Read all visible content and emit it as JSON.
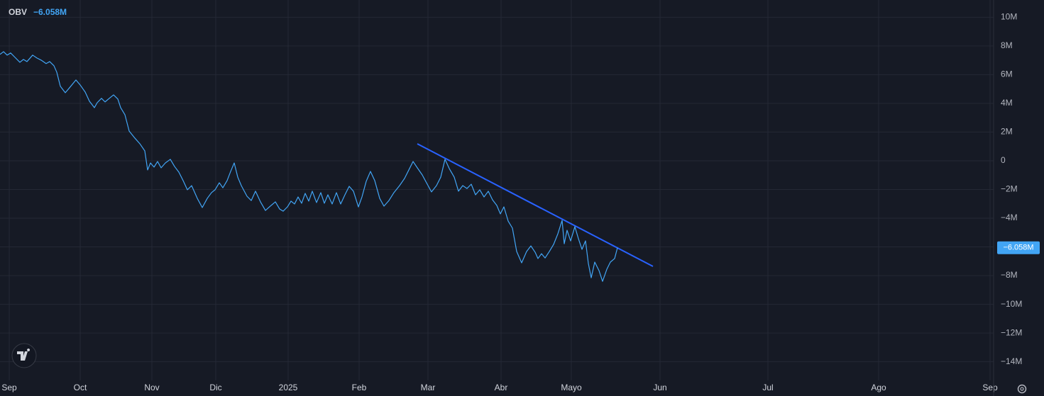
{
  "chart_data": {
    "type": "line",
    "series": [
      {
        "name": "OBV",
        "color": "#42a5f5",
        "x": [
          0,
          1,
          2,
          3,
          4.4,
          5.6,
          6.6,
          7.6,
          9.2,
          10.4,
          11.6,
          13,
          14,
          15.2,
          16,
          17,
          18.4,
          19.6,
          21.4,
          22.6,
          24,
          25.2,
          26.6,
          27.4,
          28.6,
          29.6,
          30.8,
          32,
          33.2,
          34,
          35.2,
          36.4,
          38,
          39.4,
          40.8,
          41.6,
          42.4,
          43.4,
          44.4,
          45.4,
          46.6,
          48,
          49.2,
          50.4,
          51.6,
          52.8,
          54,
          55.6,
          57,
          58.4,
          59.6,
          60.6,
          61.8,
          62.8,
          64,
          65,
          66,
          67,
          68,
          69.6,
          70.8,
          72,
          73.4,
          74.8,
          76.4,
          77.6,
          78.8,
          79.8,
          81,
          82,
          83,
          84,
          85,
          86,
          87,
          88,
          89.2,
          90.4,
          91.4,
          92.4,
          93.6,
          94.8,
          96,
          97.2,
          98.4,
          99.6,
          101,
          102,
          103.2,
          104.4,
          105.6,
          107,
          108.2,
          109.6,
          111,
          112.6,
          114,
          115.2,
          116.4,
          117.6,
          119,
          120.4,
          121.6,
          123,
          124.2,
          125.4,
          126.6,
          128,
          129.2,
          130.4,
          131.6,
          132.8,
          134,
          135.2,
          136.4,
          137.6,
          138.8,
          140,
          141,
          142,
          143.2,
          144.4,
          145.6,
          147,
          148.4,
          149.6,
          150.8,
          151.6,
          152.6,
          153.6,
          154.8,
          156,
          157.2,
          158.4,
          159,
          159.8,
          160.8,
          162,
          163,
          164,
          165,
          165.8,
          166.6,
          167.6,
          168.8,
          169.8,
          171,
          172,
          173.2,
          174
        ],
        "values": [
          7.41,
          7.6,
          7.36,
          7.51,
          7.16,
          6.86,
          7.06,
          6.91,
          7.36,
          7.16,
          7.01,
          6.77,
          6.91,
          6.62,
          6.17,
          5.19,
          4.74,
          5.09,
          5.63,
          5.28,
          4.79,
          4.15,
          3.7,
          4.05,
          4.35,
          4.1,
          4.35,
          4.59,
          4.3,
          3.7,
          3.21,
          2.07,
          1.58,
          1.19,
          0.69,
          -0.64,
          -0.15,
          -0.44,
          -0.05,
          -0.49,
          -0.15,
          0.1,
          -0.4,
          -0.79,
          -1.38,
          -2.02,
          -1.73,
          -2.62,
          -3.26,
          -2.62,
          -2.22,
          -2.02,
          -1.53,
          -1.88,
          -1.38,
          -0.74,
          -0.15,
          -1.14,
          -1.73,
          -2.47,
          -2.77,
          -2.12,
          -2.86,
          -3.46,
          -3.11,
          -2.86,
          -3.36,
          -3.51,
          -3.21,
          -2.81,
          -3.01,
          -2.52,
          -2.96,
          -2.27,
          -2.81,
          -2.12,
          -2.91,
          -2.22,
          -2.96,
          -2.37,
          -3.01,
          -2.22,
          -3.01,
          -2.37,
          -1.78,
          -2.12,
          -3.21,
          -2.52,
          -1.43,
          -0.74,
          -1.38,
          -2.62,
          -3.16,
          -2.77,
          -2.22,
          -1.73,
          -1.23,
          -0.64,
          -0.05,
          -0.49,
          -0.99,
          -1.63,
          -2.17,
          -1.73,
          -1.14,
          0.1,
          -0.54,
          -1.14,
          -2.12,
          -1.73,
          -1.93,
          -1.63,
          -2.37,
          -2.02,
          -2.52,
          -2.12,
          -2.72,
          -3.11,
          -3.7,
          -3.21,
          -4.2,
          -4.69,
          -6.32,
          -7.11,
          -6.32,
          -5.93,
          -6.37,
          -6.81,
          -6.47,
          -6.77,
          -6.32,
          -5.83,
          -5.09,
          -4.15,
          -5.78,
          -4.84,
          -5.58,
          -4.59,
          -5.43,
          -6.17,
          -5.58,
          -7.16,
          -8.15,
          -7.06,
          -7.65,
          -8.4,
          -7.56,
          -7.06,
          -6.81,
          -6.058
        ]
      }
    ],
    "last_value_label": "−6.058M",
    "xlim": [
      0,
      280
    ],
    "ylim": [
      -15.3,
      11.2
    ],
    "xticks": [
      {
        "value": 2.6,
        "label": "Sep"
      },
      {
        "value": 22.6,
        "label": "Oct"
      },
      {
        "value": 42.8,
        "label": "Nov"
      },
      {
        "value": 60.8,
        "label": "Dic"
      },
      {
        "value": 81.2,
        "label": "2025"
      },
      {
        "value": 101.2,
        "label": "Feb"
      },
      {
        "value": 120.6,
        "label": "Mar"
      },
      {
        "value": 141.2,
        "label": "Abr"
      },
      {
        "value": 161,
        "label": "Mayo"
      },
      {
        "value": 186,
        "label": "Jun"
      },
      {
        "value": 216.4,
        "label": "Jul"
      },
      {
        "value": 247.6,
        "label": "Ago"
      },
      {
        "value": 279,
        "label": "Sep"
      }
    ],
    "yticks": [
      {
        "value": 10,
        "label": "10M"
      },
      {
        "value": 8,
        "label": "8M"
      },
      {
        "value": 6,
        "label": "6M"
      },
      {
        "value": 4,
        "label": "4M"
      },
      {
        "value": 2,
        "label": "2M"
      },
      0,
      {
        "value": -2,
        "label": "−2M"
      },
      {
        "value": -4,
        "label": "−4M"
      },
      {
        "value": -6,
        "label": "−6M"
      },
      {
        "value": -8,
        "label": "−8M"
      },
      {
        "value": -10,
        "label": "−10M"
      },
      {
        "value": -12,
        "label": "−12M"
      },
      {
        "value": -14,
        "label": "−14M"
      }
    ],
    "grid": true
  }
}
